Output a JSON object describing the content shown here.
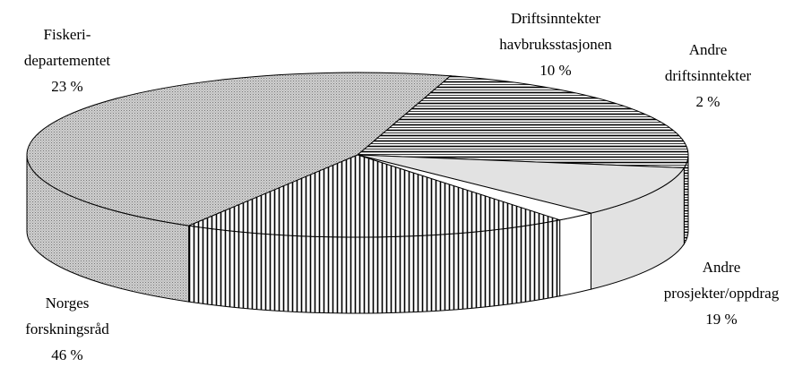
{
  "chart_data": {
    "type": "pie3d",
    "categories": [
      [
        "Fiskeri-",
        "departementet"
      ],
      [
        "Driftsinntekter",
        "havbruksstasjonen"
      ],
      [
        "Andre",
        "driftsinntekter"
      ],
      [
        "Andre",
        "prosjekter/oppdrag"
      ],
      [
        "Norges",
        "forskningsråd"
      ]
    ],
    "values": [
      23,
      10,
      2,
      19,
      46
    ],
    "value_labels": [
      "23 %",
      "10 %",
      "2 %",
      "19 %",
      "46 %"
    ]
  }
}
